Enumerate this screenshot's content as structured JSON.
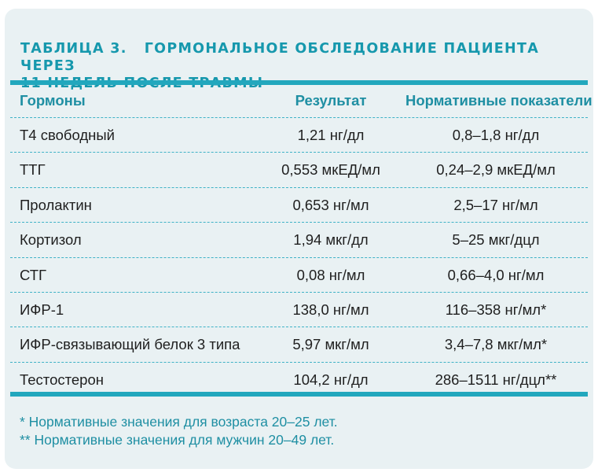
{
  "table": {
    "title_number": "ТАБЛИЦА 3.",
    "title_line1": "ГОРМОНАЛЬНОЕ ОБСЛЕДОВАНИЕ ПАЦИЕНТА ЧЕРЕЗ",
    "title_line2": "11 НЕДЕЛЬ ПОСЛЕ ТРАВМЫ",
    "headers": [
      "Гормоны",
      "Результат",
      "Нормативные показатели"
    ],
    "rows": [
      [
        "Т4 свободный",
        "1,21 нг/дл",
        "0,8–1,8 нг/дл"
      ],
      [
        "ТТГ",
        "0,553 мкЕД/мл",
        "0,24–2,9 мкЕД/мл"
      ],
      [
        "Пролактин",
        "0,653 нг/мл",
        "2,5–17 нг/мл"
      ],
      [
        "Кортизол",
        "1,94 мкг/дл",
        "5–25 мкг/дцл"
      ],
      [
        "СТГ",
        "0,08 нг/мл",
        "0,66–4,0 нг/мл"
      ],
      [
        "ИФР-1",
        "138,0 нг/мл",
        "116–358 нг/мл*"
      ],
      [
        "ИФР-связывающий белок 3 типа",
        "5,97 мкг/мл",
        "3,4–7,8 мкг/мл*"
      ],
      [
        "Тестостерон",
        "104,2 нг/дл",
        "286–1511 нг/дцл**"
      ]
    ],
    "footnotes": [
      "* Нормативные значения для возраста 20–25 лет.",
      "** Нормативные значения для мужчин 20–49 лет."
    ]
  },
  "colors": {
    "panel_background": "#e9f1f3",
    "accent": "#22a7bd",
    "title": "#1698ad",
    "header_text": "#1f8fa3",
    "body_text": "#1f1f1f"
  }
}
